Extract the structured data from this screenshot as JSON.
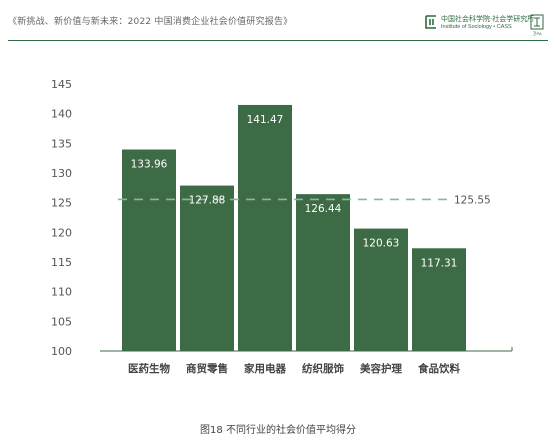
{
  "header": {
    "title": "《新挑战、新价值与新未来：2022 中国消费企业社会价值研究报告》",
    "logo_cn": "中国社会科学院·社会学研究所",
    "logo_en": "Institute of Sociology • CASS",
    "seal_text": "卫PA"
  },
  "caption": "图18 不同行业的社会价值平均得分",
  "colors": {
    "bar": "#3d6b45",
    "avg_line": "#8fb59a",
    "axis": "#3d6b45",
    "header_line": "#2d6a3e"
  },
  "chart_data": {
    "type": "bar",
    "categories": [
      "医药生物",
      "商贸零售",
      "家用电器",
      "纺织服饰",
      "美容护理",
      "食品饮料"
    ],
    "values": [
      133.96,
      127.88,
      141.47,
      126.44,
      120.63,
      117.31
    ],
    "value_labels": [
      "133.96",
      "127.88",
      "141.47",
      "126.44",
      "120.63",
      "117.31"
    ],
    "reference_line": {
      "value": 125.55,
      "label": "125.55",
      "style": "dashed"
    },
    "y_ticks": [
      "100",
      "105",
      "110",
      "115",
      "120",
      "125",
      "130",
      "135",
      "140",
      "145"
    ],
    "ylim": [
      100,
      145
    ],
    "title": "",
    "xlabel": "",
    "ylabel": "",
    "grid": false
  }
}
